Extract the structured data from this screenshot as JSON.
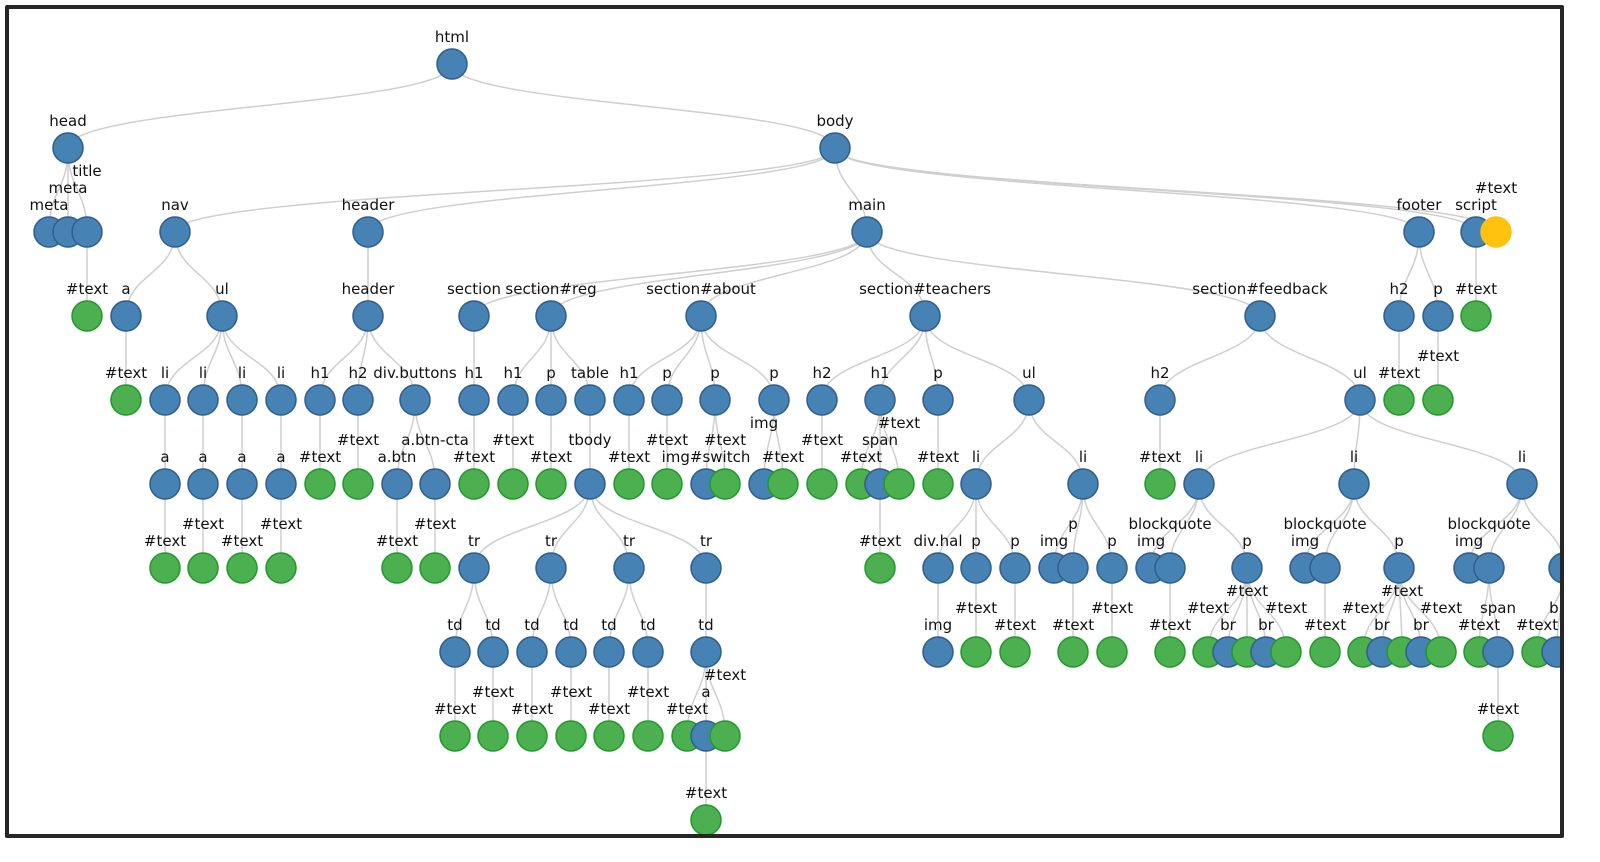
{
  "colors": {
    "element": "#4682b4",
    "element_stroke": "#2f5d8c",
    "text": "#4cb050",
    "text_stroke": "#1f9a2a",
    "highlight": "#ffc20e"
  },
  "nodes": [
    {
      "label": "html",
      "kind": "element",
      "parent": null
    },
    {
      "label": "head",
      "kind": "element",
      "parent": 0
    },
    {
      "label": "body",
      "kind": "element",
      "parent": 0
    },
    {
      "label": "meta",
      "kind": "element",
      "parent": 1
    },
    {
      "label": "meta",
      "kind": "element",
      "parent": 1
    },
    {
      "label": "title",
      "kind": "element",
      "parent": 1
    },
    {
      "label": "nav",
      "kind": "element",
      "parent": 2
    },
    {
      "label": "header",
      "kind": "element",
      "parent": 2
    },
    {
      "label": "main",
      "kind": "element",
      "parent": 2
    },
    {
      "label": "footer",
      "kind": "element",
      "parent": 2
    },
    {
      "label": "script",
      "kind": "element",
      "parent": 2
    },
    {
      "label": "#text",
      "kind": "highlight",
      "parent": 2
    },
    {
      "label": "#text",
      "kind": "text",
      "parent": 5
    },
    {
      "label": "a",
      "kind": "element",
      "parent": 6
    },
    {
      "label": "ul",
      "kind": "element",
      "parent": 6
    },
    {
      "label": "header",
      "kind": "element",
      "parent": 7
    },
    {
      "label": "section",
      "kind": "element",
      "parent": 8
    },
    {
      "label": "section#reg",
      "kind": "element",
      "parent": 8
    },
    {
      "label": "section#about",
      "kind": "element",
      "parent": 8
    },
    {
      "label": "section#teachers",
      "kind": "element",
      "parent": 8
    },
    {
      "label": "section#feedback",
      "kind": "element",
      "parent": 8
    },
    {
      "label": "h2",
      "kind": "element",
      "parent": 9
    },
    {
      "label": "p",
      "kind": "element",
      "parent": 9
    },
    {
      "label": "#text",
      "kind": "text",
      "parent": 10
    },
    {
      "label": "#text",
      "kind": "text",
      "parent": 13
    },
    {
      "label": "li",
      "kind": "element",
      "parent": 14
    },
    {
      "label": "li",
      "kind": "element",
      "parent": 14
    },
    {
      "label": "li",
      "kind": "element",
      "parent": 14
    },
    {
      "label": "li",
      "kind": "element",
      "parent": 14
    },
    {
      "label": "h1",
      "kind": "element",
      "parent": 15
    },
    {
      "label": "h2",
      "kind": "element",
      "parent": 15
    },
    {
      "label": "div.buttons",
      "kind": "element",
      "parent": 15
    },
    {
      "label": "h1",
      "kind": "element",
      "parent": 16
    },
    {
      "label": "h1",
      "kind": "element",
      "parent": 17
    },
    {
      "label": "p",
      "kind": "element",
      "parent": 17
    },
    {
      "label": "table",
      "kind": "element",
      "parent": 17
    },
    {
      "label": "h1",
      "kind": "element",
      "parent": 18
    },
    {
      "label": "p",
      "kind": "element",
      "parent": 18
    },
    {
      "label": "p",
      "kind": "element",
      "parent": 18
    },
    {
      "label": "p",
      "kind": "element",
      "parent": 18
    },
    {
      "label": "h2",
      "kind": "element",
      "parent": 19
    },
    {
      "label": "h1",
      "kind": "element",
      "parent": 19
    },
    {
      "label": "p",
      "kind": "element",
      "parent": 19
    },
    {
      "label": "ul",
      "kind": "element",
      "parent": 19
    },
    {
      "label": "h2",
      "kind": "element",
      "parent": 20
    },
    {
      "label": "ul",
      "kind": "element",
      "parent": 20
    },
    {
      "label": "#text",
      "kind": "text",
      "parent": 21
    },
    {
      "label": "#text",
      "kind": "text",
      "parent": 22
    },
    {
      "label": "a",
      "kind": "element",
      "parent": 25
    },
    {
      "label": "a",
      "kind": "element",
      "parent": 26
    },
    {
      "label": "a",
      "kind": "element",
      "parent": 27
    },
    {
      "label": "a",
      "kind": "element",
      "parent": 28
    },
    {
      "label": "#text",
      "kind": "text",
      "parent": 29
    },
    {
      "label": "#text",
      "kind": "text",
      "parent": 30
    },
    {
      "label": "a.btn",
      "kind": "element",
      "parent": 31
    },
    {
      "label": "a.btn-cta",
      "kind": "element",
      "parent": 31
    },
    {
      "label": "#text",
      "kind": "text",
      "parent": 32
    },
    {
      "label": "#text",
      "kind": "text",
      "parent": 33
    },
    {
      "label": "#text",
      "kind": "text",
      "parent": 34
    },
    {
      "label": "tbody",
      "kind": "element",
      "parent": 35
    },
    {
      "label": "#text",
      "kind": "text",
      "parent": 36
    },
    {
      "label": "#text",
      "kind": "text",
      "parent": 37
    },
    {
      "label": "img#switch",
      "kind": "element",
      "parent": 38
    },
    {
      "label": "#text",
      "kind": "text",
      "parent": 38
    },
    {
      "label": "img",
      "kind": "element",
      "parent": 39
    },
    {
      "label": "#text",
      "kind": "text",
      "parent": 39
    },
    {
      "label": "#text",
      "kind": "text",
      "parent": 40
    },
    {
      "label": "#text",
      "kind": "text",
      "parent": 41
    },
    {
      "label": "span",
      "kind": "element",
      "parent": 41
    },
    {
      "label": "#text",
      "kind": "text",
      "parent": 41
    },
    {
      "label": "#text",
      "kind": "text",
      "parent": 42
    },
    {
      "label": "li",
      "kind": "element",
      "parent": 43
    },
    {
      "label": "li",
      "kind": "element",
      "parent": 43
    },
    {
      "label": "#text",
      "kind": "text",
      "parent": 44
    },
    {
      "label": "li",
      "kind": "element",
      "parent": 45
    },
    {
      "label": "li",
      "kind": "element",
      "parent": 45
    },
    {
      "label": "li",
      "kind": "element",
      "parent": 45
    },
    {
      "label": "#text",
      "kind": "text",
      "parent": 48
    },
    {
      "label": "#text",
      "kind": "text",
      "parent": 49
    },
    {
      "label": "#text",
      "kind": "text",
      "parent": 50
    },
    {
      "label": "#text",
      "kind": "text",
      "parent": 51
    },
    {
      "label": "#text",
      "kind": "text",
      "parent": 54
    },
    {
      "label": "#text",
      "kind": "text",
      "parent": 55
    },
    {
      "label": "tr",
      "kind": "element",
      "parent": 59
    },
    {
      "label": "tr",
      "kind": "element",
      "parent": 59
    },
    {
      "label": "tr",
      "kind": "element",
      "parent": 59
    },
    {
      "label": "tr",
      "kind": "element",
      "parent": 59
    },
    {
      "label": "#text",
      "kind": "text",
      "parent": 68
    },
    {
      "label": "div.hal",
      "kind": "element",
      "parent": 71
    },
    {
      "label": "p",
      "kind": "element",
      "parent": 71
    },
    {
      "label": "p",
      "kind": "element",
      "parent": 71
    },
    {
      "label": "img",
      "kind": "element",
      "parent": 72
    },
    {
      "label": "p",
      "kind": "element",
      "parent": 72
    },
    {
      "label": "p",
      "kind": "element",
      "parent": 72
    },
    {
      "label": "img",
      "kind": "element",
      "parent": 74
    },
    {
      "label": "blockquote",
      "kind": "element",
      "parent": 74
    },
    {
      "label": "p",
      "kind": "element",
      "parent": 74
    },
    {
      "label": "img",
      "kind": "element",
      "parent": 75
    },
    {
      "label": "blockquote",
      "kind": "element",
      "parent": 75
    },
    {
      "label": "p",
      "kind": "element",
      "parent": 75
    },
    {
      "label": "img",
      "kind": "element",
      "parent": 76
    },
    {
      "label": "blockquote",
      "kind": "element",
      "parent": 76
    },
    {
      "label": "",
      "kind": "element",
      "parent": 76
    },
    {
      "label": "td",
      "kind": "element",
      "parent": 83
    },
    {
      "label": "td",
      "kind": "element",
      "parent": 83
    },
    {
      "label": "td",
      "kind": "element",
      "parent": 84
    },
    {
      "label": "td",
      "kind": "element",
      "parent": 84
    },
    {
      "label": "td",
      "kind": "element",
      "parent": 85
    },
    {
      "label": "td",
      "kind": "element",
      "parent": 85
    },
    {
      "label": "td",
      "kind": "element",
      "parent": 86
    },
    {
      "label": "img",
      "kind": "element",
      "parent": 88
    },
    {
      "label": "#text",
      "kind": "text",
      "parent": 89
    },
    {
      "label": "#text",
      "kind": "text",
      "parent": 90
    },
    {
      "label": "#text",
      "kind": "text",
      "parent": 92
    },
    {
      "label": "#text",
      "kind": "text",
      "parent": 93
    },
    {
      "label": "#text",
      "kind": "text",
      "parent": 95
    },
    {
      "label": "#text",
      "kind": "text",
      "parent": 96
    },
    {
      "label": "br",
      "kind": "element",
      "parent": 96
    },
    {
      "label": "#text",
      "kind": "text",
      "parent": 96
    },
    {
      "label": "br",
      "kind": "element",
      "parent": 96
    },
    {
      "label": "#text",
      "kind": "text",
      "parent": 96
    },
    {
      "label": "#text",
      "kind": "text",
      "parent": 98
    },
    {
      "label": "#text",
      "kind": "text",
      "parent": 99
    },
    {
      "label": "br",
      "kind": "element",
      "parent": 99
    },
    {
      "label": "#text",
      "kind": "text",
      "parent": 99
    },
    {
      "label": "br",
      "kind": "element",
      "parent": 99
    },
    {
      "label": "#text",
      "kind": "text",
      "parent": 99
    },
    {
      "label": "#text",
      "kind": "text",
      "parent": 101
    },
    {
      "label": "span",
      "kind": "element",
      "parent": 101
    },
    {
      "label": "#text",
      "kind": "text",
      "parent": 102
    },
    {
      "label": "br",
      "kind": "element",
      "parent": 102
    },
    {
      "label": "#text",
      "kind": "text",
      "parent": 103
    },
    {
      "label": "#text",
      "kind": "text",
      "parent": 104
    },
    {
      "label": "#text",
      "kind": "text",
      "parent": 105
    },
    {
      "label": "#text",
      "kind": "text",
      "parent": 106
    },
    {
      "label": "#text",
      "kind": "text",
      "parent": 107
    },
    {
      "label": "#text",
      "kind": "text",
      "parent": 108
    },
    {
      "label": "#text",
      "kind": "text",
      "parent": 109
    },
    {
      "label": "a",
      "kind": "element",
      "parent": 109
    },
    {
      "label": "#text",
      "kind": "text",
      "parent": 109
    },
    {
      "label": "#text",
      "kind": "text",
      "parent": 128
    },
    {
      "label": "#text",
      "kind": "text",
      "parent": 138
    }
  ]
}
